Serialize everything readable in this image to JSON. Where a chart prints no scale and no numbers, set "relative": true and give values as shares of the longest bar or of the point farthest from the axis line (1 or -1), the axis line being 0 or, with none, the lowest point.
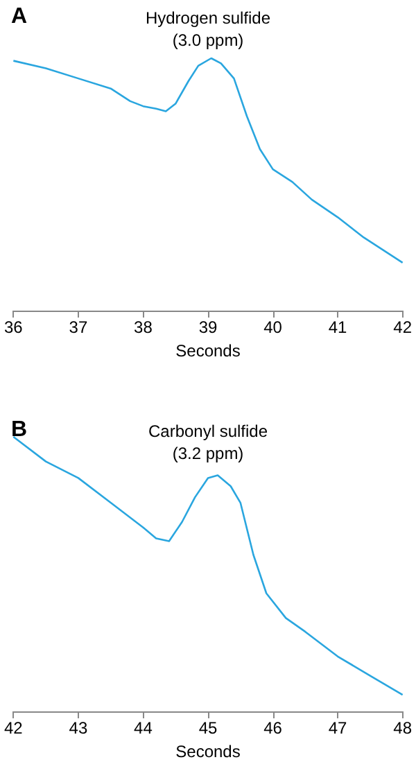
{
  "chart_data": [
    {
      "type": "line",
      "title": "Hydrogen sulfide",
      "subtitle": "(3.0 ppm)",
      "xlabel": "Seconds",
      "annotations": [
        "A"
      ],
      "relative": true,
      "marker": "none",
      "grid": false,
      "xlim": [
        36,
        42
      ],
      "xticks": [
        36,
        37,
        38,
        39,
        40,
        41,
        42
      ],
      "series": [
        {
          "color": "#2aa6df",
          "x": [
            36,
            36.5,
            37,
            37.5,
            37.8,
            38,
            38.2,
            38.35,
            38.5,
            38.7,
            38.85,
            39.05,
            39.2,
            39.4,
            39.6,
            39.8,
            40,
            40.3,
            40.6,
            41,
            41.4,
            41.7,
            42
          ],
          "values": [
            0.99,
            0.96,
            0.92,
            0.88,
            0.83,
            0.81,
            0.8,
            0.79,
            0.82,
            0.91,
            0.97,
            1,
            0.98,
            0.92,
            0.77,
            0.64,
            0.56,
            0.51,
            0.44,
            0.37,
            0.29,
            0.24,
            0.19
          ]
        }
      ]
    },
    {
      "type": "line",
      "title": "Carbonyl sulfide",
      "subtitle": "(3.2 ppm)",
      "xlabel": "Seconds",
      "annotations": [
        "B"
      ],
      "relative": true,
      "marker": "none",
      "grid": false,
      "xlim": [
        42,
        48
      ],
      "xticks": [
        42,
        43,
        44,
        45,
        46,
        47,
        48
      ],
      "series": [
        {
          "color": "#2aa6df",
          "x": [
            42,
            42.5,
            43,
            43.5,
            44,
            44.2,
            44.4,
            44.6,
            44.8,
            45,
            45.15,
            45.35,
            45.5,
            45.7,
            45.9,
            46.2,
            46.5,
            47,
            47.5,
            48
          ],
          "values": [
            1,
            0.91,
            0.85,
            0.76,
            0.67,
            0.63,
            0.62,
            0.69,
            0.78,
            0.85,
            0.86,
            0.82,
            0.76,
            0.57,
            0.43,
            0.34,
            0.29,
            0.2,
            0.13,
            0.06
          ]
        }
      ]
    }
  ]
}
